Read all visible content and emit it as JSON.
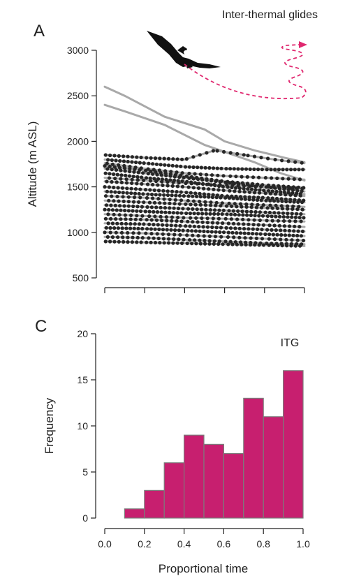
{
  "chart_data": [
    {
      "type": "line",
      "panel_letter": "A",
      "annotation": "Inter-thermal glides",
      "ylabel": "Altitude (m ASL)",
      "xlabel": "",
      "ylim": [
        500,
        3000
      ],
      "yticks": [
        500,
        1000,
        1500,
        2000,
        2500,
        3000
      ],
      "xlim": [
        0,
        1
      ],
      "xticks": [
        0.0,
        0.2,
        0.4,
        0.6,
        0.8,
        1.0
      ],
      "x_tick_labels_shown": false,
      "grid": false,
      "series_description": "many inter-thermal glide tracks (grey lines) with sampled points (dark dots)",
      "series": [
        {
          "x": [
            0,
            0.1,
            0.3,
            0.5,
            0.6,
            0.75,
            0.9,
            1.0
          ],
          "values": [
            2600,
            2500,
            2270,
            2130,
            2000,
            1900,
            1820,
            1770
          ]
        },
        {
          "x": [
            0,
            0.1,
            0.3,
            0.5,
            0.62,
            0.75,
            0.88,
            1.0
          ],
          "values": [
            2400,
            2330,
            2180,
            1960,
            1870,
            1770,
            1650,
            1570
          ]
        },
        {
          "x": [
            0,
            0.2,
            0.4,
            0.55,
            0.7,
            0.85,
            1.0
          ],
          "values": [
            1850,
            1820,
            1800,
            1900,
            1850,
            1800,
            1760
          ]
        },
        {
          "x": [
            0,
            0.2,
            0.4,
            0.6,
            0.8,
            1.0
          ],
          "values": [
            1800,
            1760,
            1720,
            1700,
            1690,
            1690
          ]
        },
        {
          "x": [
            0,
            0.2,
            0.4,
            0.6,
            0.8,
            1.0
          ],
          "values": [
            1760,
            1700,
            1650,
            1620,
            1600,
            1580
          ]
        },
        {
          "x": [
            0,
            0.2,
            0.4,
            0.6,
            0.8,
            1.0
          ],
          "values": [
            1730,
            1680,
            1620,
            1560,
            1520,
            1490
          ]
        },
        {
          "x": [
            0,
            0.2,
            0.4,
            0.6,
            0.8,
            1.0
          ],
          "values": [
            1700,
            1650,
            1600,
            1550,
            1500,
            1450
          ]
        },
        {
          "x": [
            0,
            0.2,
            0.4,
            0.6,
            0.8,
            1.0
          ],
          "values": [
            1650,
            1600,
            1560,
            1500,
            1460,
            1420
          ]
        },
        {
          "x": [
            0,
            0.2,
            0.4,
            0.6,
            0.8,
            1.0
          ],
          "values": [
            1600,
            1570,
            1540,
            1520,
            1500,
            1480
          ]
        },
        {
          "x": [
            0,
            0.2,
            0.4,
            0.6,
            0.8,
            1.0
          ],
          "values": [
            1560,
            1530,
            1500,
            1460,
            1430,
            1400
          ]
        },
        {
          "x": [
            0,
            0.2,
            0.4,
            0.6,
            0.8,
            1.0
          ],
          "values": [
            1500,
            1470,
            1440,
            1400,
            1380,
            1350
          ]
        },
        {
          "x": [
            0,
            0.2,
            0.4,
            0.6,
            0.8,
            1.0
          ],
          "values": [
            1450,
            1420,
            1400,
            1380,
            1350,
            1330
          ]
        },
        {
          "x": [
            0,
            0.2,
            0.4,
            0.6,
            0.8,
            1.0
          ],
          "values": [
            1400,
            1380,
            1350,
            1320,
            1300,
            1280
          ]
        },
        {
          "x": [
            0,
            0.2,
            0.4,
            0.6,
            0.8,
            1.0
          ],
          "values": [
            1350,
            1330,
            1310,
            1290,
            1270,
            1250
          ]
        },
        {
          "x": [
            0,
            0.2,
            0.4,
            0.6,
            0.8,
            1.0
          ],
          "values": [
            1300,
            1280,
            1260,
            1240,
            1220,
            1200
          ]
        },
        {
          "x": [
            0,
            0.2,
            0.4,
            0.6,
            0.8,
            1.0
          ],
          "values": [
            1250,
            1230,
            1210,
            1200,
            1180,
            1160
          ]
        },
        {
          "x": [
            0,
            0.2,
            0.4,
            0.6,
            0.8,
            1.0
          ],
          "values": [
            1200,
            1180,
            1160,
            1150,
            1130,
            1120
          ]
        },
        {
          "x": [
            0,
            0.2,
            0.4,
            0.6,
            0.8,
            1.0
          ],
          "values": [
            1150,
            1140,
            1120,
            1100,
            1080,
            1060
          ]
        },
        {
          "x": [
            0,
            0.2,
            0.4,
            0.6,
            0.8,
            1.0
          ],
          "values": [
            1100,
            1090,
            1070,
            1050,
            1030,
            1010
          ]
        },
        {
          "x": [
            0,
            0.2,
            0.4,
            0.6,
            0.8,
            1.0
          ],
          "values": [
            1050,
            1040,
            1020,
            1000,
            980,
            960
          ]
        },
        {
          "x": [
            0,
            0.2,
            0.4,
            0.6,
            0.8,
            1.0
          ],
          "values": [
            1000,
            990,
            970,
            950,
            930,
            910
          ]
        },
        {
          "x": [
            0,
            0.2,
            0.4,
            0.6,
            0.8,
            1.0
          ],
          "values": [
            950,
            940,
            920,
            900,
            880,
            870
          ]
        },
        {
          "x": [
            0,
            0.2,
            0.4,
            0.6,
            0.8,
            1.0
          ],
          "values": [
            900,
            890,
            880,
            870,
            860,
            850
          ]
        }
      ]
    },
    {
      "type": "bar",
      "panel_letter": "C",
      "annotation": "ITG",
      "xlabel": "Proportional time",
      "ylabel": "Frequency",
      "xlim": [
        0,
        1
      ],
      "ylim": [
        0,
        20
      ],
      "xticks": [
        0.0,
        0.2,
        0.4,
        0.6,
        0.8,
        1.0
      ],
      "yticks": [
        0,
        5,
        10,
        15,
        20
      ],
      "bin_edges": [
        0.1,
        0.2,
        0.3,
        0.4,
        0.5,
        0.6,
        0.7,
        0.8,
        0.9,
        1.0
      ],
      "values": [
        1,
        3,
        6,
        9,
        8,
        7,
        13,
        11,
        16
      ],
      "bar_color": "#c71f6f",
      "grid": false
    }
  ],
  "colors": {
    "glide_lines": "#a9a9a9",
    "points": "#262626",
    "arrow": "#e0286f",
    "bird": "#111111"
  }
}
